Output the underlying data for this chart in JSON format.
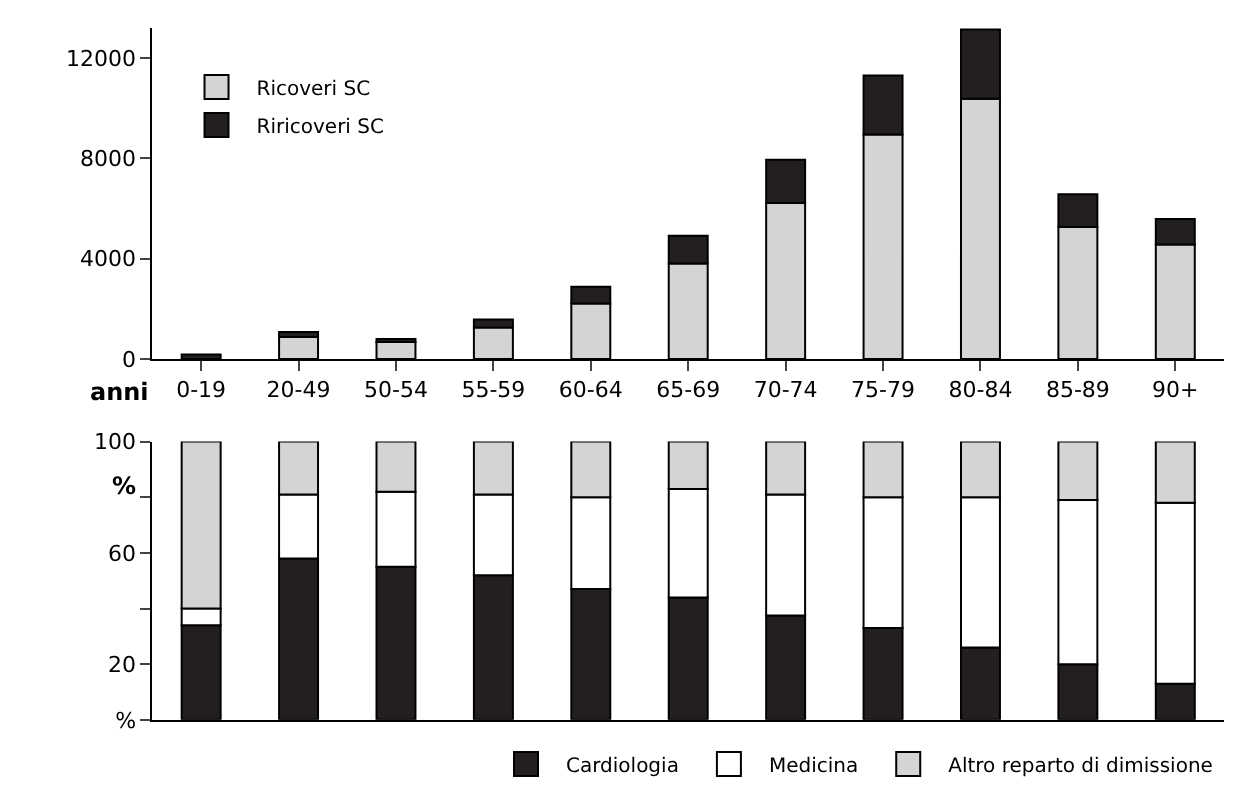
{
  "chart_data": [
    {
      "type": "bar",
      "stacked": true,
      "xlabel": "anni",
      "categories": [
        "0-19",
        "20-49",
        "50-54",
        "55-59",
        "60-64",
        "65-69",
        "70-74",
        "75-79",
        "80-84",
        "85-89",
        "90+"
      ],
      "ylim": [
        0,
        13200
      ],
      "yticks": [
        0,
        4000,
        8000,
        12000
      ],
      "legend": "top left",
      "series": [
        {
          "name": "Ricoveri SC",
          "color": "#d4d4d4",
          "values": [
            null,
            870,
            670,
            1250,
            2210,
            3810,
            6220,
            8950,
            10380,
            5260,
            4560
          ]
        },
        {
          "name": "Riricoveri SC",
          "color": "#231f20",
          "values": [
            175,
            200,
            120,
            320,
            670,
            1100,
            1720,
            2360,
            2760,
            1310,
            1020
          ]
        }
      ]
    },
    {
      "type": "bar",
      "stacked": true,
      "ylabel": "%",
      "categories": [
        null,
        null,
        null,
        null,
        null,
        null,
        null,
        null,
        null,
        null,
        null
      ],
      "tick_labels": "y",
      "ylim": [
        0,
        100
      ],
      "yticks": [
        {
          "value": 0,
          "label": "%"
        },
        20,
        {
          "value": 40,
          "label": null
        },
        60,
        {
          "value": 80,
          "label": null
        },
        100
      ],
      "legend": "bottom",
      "series": [
        {
          "name": "Cardiologia",
          "color": "#231f20",
          "values": [
            34,
            58,
            55,
            52,
            47,
            44,
            37.5,
            33,
            26,
            20,
            13
          ]
        },
        {
          "name": "Medicina",
          "color": "#ffffff",
          "values": [
            6,
            23,
            27,
            29,
            33,
            39,
            43.5,
            47,
            54,
            59,
            65
          ]
        },
        {
          "name": "Altro reparto di dimissione",
          "color": "#d4d4d4",
          "values": [
            60,
            19,
            18,
            19,
            20,
            17,
            19,
            20,
            20,
            21,
            22
          ]
        }
      ]
    }
  ]
}
